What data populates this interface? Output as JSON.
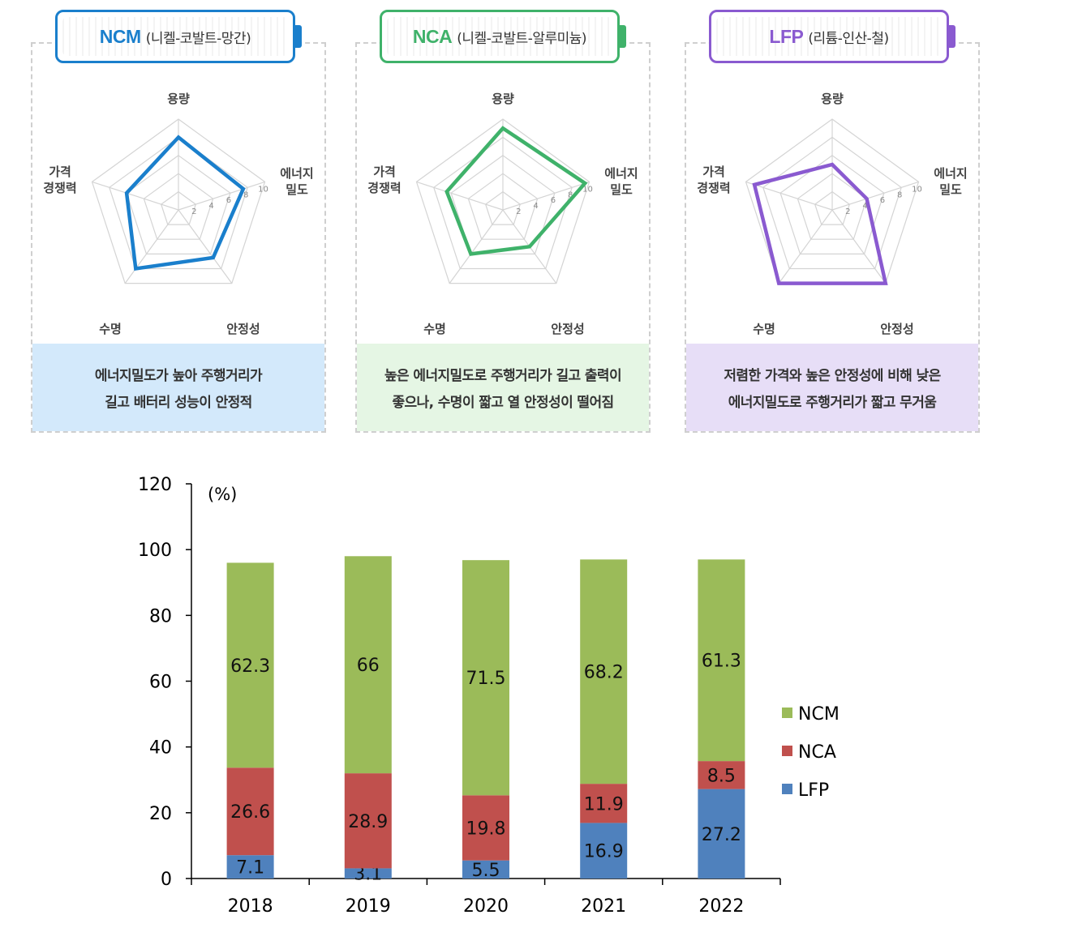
{
  "cards": [
    {
      "code": "NCM",
      "full_name": "(니켈-코발트-망간)",
      "color": "#1a7fcc",
      "fill": "#d3e9fb",
      "axes": [
        "용량",
        "에너지|밀도",
        "안정성",
        "수명",
        "가격|경쟁력"
      ],
      "ticks": [
        "2",
        "4",
        "6",
        "8",
        "10"
      ],
      "values": [
        8,
        7.5,
        6.5,
        8,
        6
      ],
      "description": [
        "에너지밀도가 높아 주행거리가",
        "길고 배터리 성능이 안정적"
      ]
    },
    {
      "code": "NCA",
      "full_name": "(니켈-코발트-알루미늄)",
      "color": "#3fb26a",
      "fill": "#e5f6e4",
      "axes": [
        "용량",
        "에너지|밀도",
        "안정성",
        "수명",
        "가격|경쟁력"
      ],
      "ticks": [
        "2",
        "4",
        "6",
        "8",
        "10"
      ],
      "values": [
        9,
        9.5,
        5,
        6,
        6.5
      ],
      "description": [
        "높은 에너지밀도로 주행거리가 길고 출력이",
        "좋으나, 수명이 짧고 열 안정성이 떨어짐"
      ]
    },
    {
      "code": "LFP",
      "full_name": "(리튬-인산-철)",
      "color": "#8a5ad0",
      "fill": "#e7def7",
      "axes": [
        "용량",
        "에너지|밀도",
        "안정성",
        "수명",
        "가격|경쟁력"
      ],
      "ticks": [
        "2",
        "4",
        "6",
        "8",
        "10"
      ],
      "values": [
        5,
        4,
        10,
        10,
        9
      ],
      "description": [
        "저렴한 가격와 높은 안정성에 비해 낮은",
        "에너지밀도로 주행거리가 짧고 무거움"
      ]
    }
  ],
  "chart_data": {
    "type": "bar",
    "stacked": true,
    "categories": [
      "2018",
      "2019",
      "2020",
      "2021",
      "2022"
    ],
    "series": [
      {
        "name": "LFP",
        "color": "#4f81bd",
        "values": [
          7.1,
          3.1,
          5.5,
          16.9,
          27.2
        ]
      },
      {
        "name": "NCA",
        "color": "#c0504d",
        "values": [
          26.6,
          28.9,
          19.8,
          11.9,
          8.5
        ]
      },
      {
        "name": "NCM",
        "color": "#9bbb59",
        "values": [
          62.3,
          66,
          71.5,
          68.2,
          61.3
        ]
      }
    ],
    "unit": "(%)",
    "ylim": [
      0,
      120
    ],
    "yticks": [
      0,
      20,
      40,
      60,
      80,
      100,
      120
    ],
    "legend": [
      "NCM",
      "NCA",
      "LFP"
    ],
    "legend_position": "right"
  }
}
